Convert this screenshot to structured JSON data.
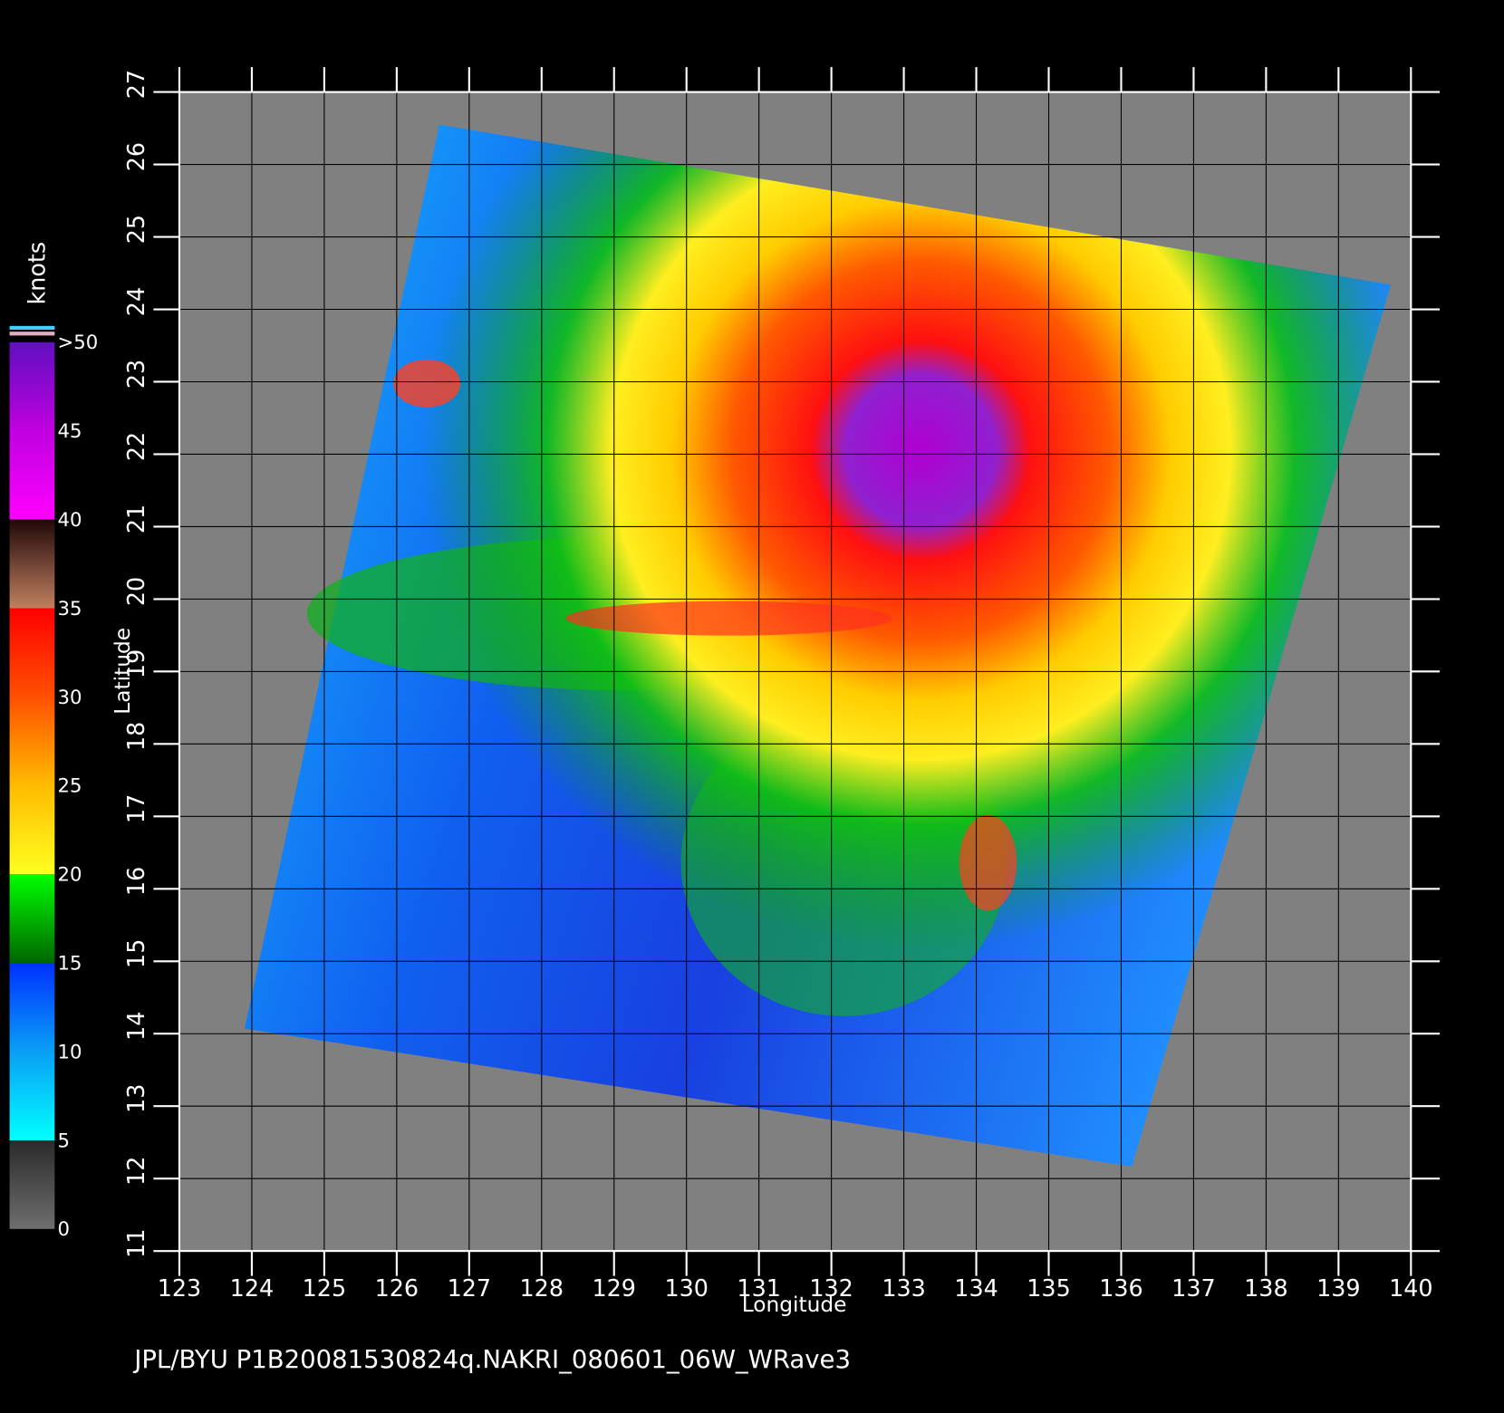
{
  "map": {
    "xlabel": "Longitude",
    "ylabel": "Latitude",
    "xlim": [
      123,
      140
    ],
    "ylim": [
      11,
      27
    ],
    "xticks": [
      123,
      124,
      125,
      126,
      127,
      128,
      129,
      130,
      131,
      132,
      133,
      134,
      135,
      136,
      137,
      138,
      139,
      140
    ],
    "yticks": [
      11,
      12,
      13,
      14,
      15,
      16,
      17,
      18,
      19,
      20,
      21,
      22,
      23,
      24,
      25,
      26,
      27
    ],
    "colorbar": {
      "title": "knots",
      "lim": [
        0,
        50
      ],
      "ticks": [
        {
          "value": 50,
          "label": ">50"
        },
        45,
        40,
        35,
        30,
        25,
        20,
        15,
        10,
        5,
        0
      ]
    },
    "footer": "JPL/BYU  P1B20081530824q.NAKRI_080601_06W_WRave3"
  }
}
